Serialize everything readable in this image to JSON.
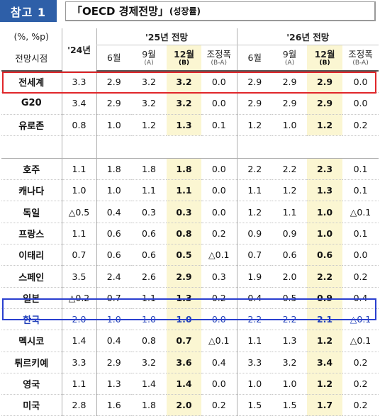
{
  "badge": "참고 1",
  "title": {
    "main": "「OECD 경제전망」",
    "sub": "(성장률)"
  },
  "header": {
    "unit": "(%, %p)",
    "row_label": "전망시점",
    "col_2024": "'24년",
    "group_2025": "'25년 전망",
    "group_2026": "'26년 전망",
    "cols": [
      {
        "label": "6월",
        "sub": ""
      },
      {
        "label": "9월",
        "sub": "(A)"
      },
      {
        "label": "12월",
        "sub": "(B)"
      },
      {
        "label": "조정폭",
        "sub": "(B-A)"
      }
    ]
  },
  "rows": [
    {
      "name": "전세계",
      "v24": "3.3",
      "y25": [
        "2.9",
        "3.2",
        "3.2",
        "0.0"
      ],
      "y26": [
        "2.9",
        "2.9",
        "2.9",
        "0.0"
      ]
    },
    {
      "name": "G20",
      "v24": "3.4",
      "y25": [
        "2.9",
        "3.2",
        "3.2",
        "0.0"
      ],
      "y26": [
        "2.9",
        "2.9",
        "2.9",
        "0.0"
      ]
    },
    {
      "name": "유로존",
      "v24": "0.8",
      "y25": [
        "1.0",
        "1.2",
        "1.3",
        "0.1"
      ],
      "y26": [
        "1.2",
        "1.0",
        "1.2",
        "0.2"
      ]
    },
    {
      "name": "호주",
      "v24": "1.1",
      "y25": [
        "1.8",
        "1.8",
        "1.8",
        "0.0"
      ],
      "y26": [
        "2.2",
        "2.2",
        "2.3",
        "0.1"
      ]
    },
    {
      "name": "캐나다",
      "v24": "1.0",
      "y25": [
        "1.0",
        "1.1",
        "1.1",
        "0.0"
      ],
      "y26": [
        "1.1",
        "1.2",
        "1.3",
        "0.1"
      ]
    },
    {
      "name": "독일",
      "v24": "△0.5",
      "y25": [
        "0.4",
        "0.3",
        "0.3",
        "0.0"
      ],
      "y26": [
        "1.2",
        "1.1",
        "1.0",
        "△0.1"
      ]
    },
    {
      "name": "프랑스",
      "v24": "1.1",
      "y25": [
        "0.6",
        "0.6",
        "0.8",
        "0.2"
      ],
      "y26": [
        "0.9",
        "0.9",
        "1.0",
        "0.1"
      ]
    },
    {
      "name": "이태리",
      "v24": "0.7",
      "y25": [
        "0.6",
        "0.6",
        "0.5",
        "△0.1"
      ],
      "y26": [
        "0.7",
        "0.6",
        "0.6",
        "0.0"
      ]
    },
    {
      "name": "스페인",
      "v24": "3.5",
      "y25": [
        "2.4",
        "2.6",
        "2.9",
        "0.3"
      ],
      "y26": [
        "1.9",
        "2.0",
        "2.2",
        "0.2"
      ]
    },
    {
      "name": "일본",
      "v24": "△0.2",
      "y25": [
        "0.7",
        "1.1",
        "1.3",
        "0.2"
      ],
      "y26": [
        "0.4",
        "0.5",
        "0.9",
        "0.4"
      ]
    },
    {
      "name": "한국",
      "v24": "2.0",
      "y25": [
        "1.0",
        "1.0",
        "1.0",
        "0.0"
      ],
      "y26": [
        "2.2",
        "2.2",
        "2.1",
        "△0.1"
      ]
    },
    {
      "name": "멕시코",
      "v24": "1.4",
      "y25": [
        "0.4",
        "0.8",
        "0.7",
        "△0.1"
      ],
      "y26": [
        "1.1",
        "1.3",
        "1.2",
        "△0.1"
      ]
    },
    {
      "name": "튀르키예",
      "v24": "3.3",
      "y25": [
        "2.9",
        "3.2",
        "3.6",
        "0.4"
      ],
      "y26": [
        "3.3",
        "3.2",
        "3.4",
        "0.2"
      ]
    },
    {
      "name": "영국",
      "v24": "1.1",
      "y25": [
        "1.3",
        "1.4",
        "1.4",
        "0.0"
      ],
      "y26": [
        "1.0",
        "1.0",
        "1.2",
        "0.2"
      ]
    },
    {
      "name": "미국",
      "v24": "2.8",
      "y25": [
        "1.6",
        "1.8",
        "2.0",
        "0.2"
      ],
      "y26": [
        "1.5",
        "1.5",
        "1.7",
        "0.2"
      ]
    }
  ],
  "colors": {
    "badge": "#2e5fa8",
    "highlight": "#fbf6d2",
    "outline_world": "#e0262a",
    "outline_korea": "#2a3fcf"
  }
}
